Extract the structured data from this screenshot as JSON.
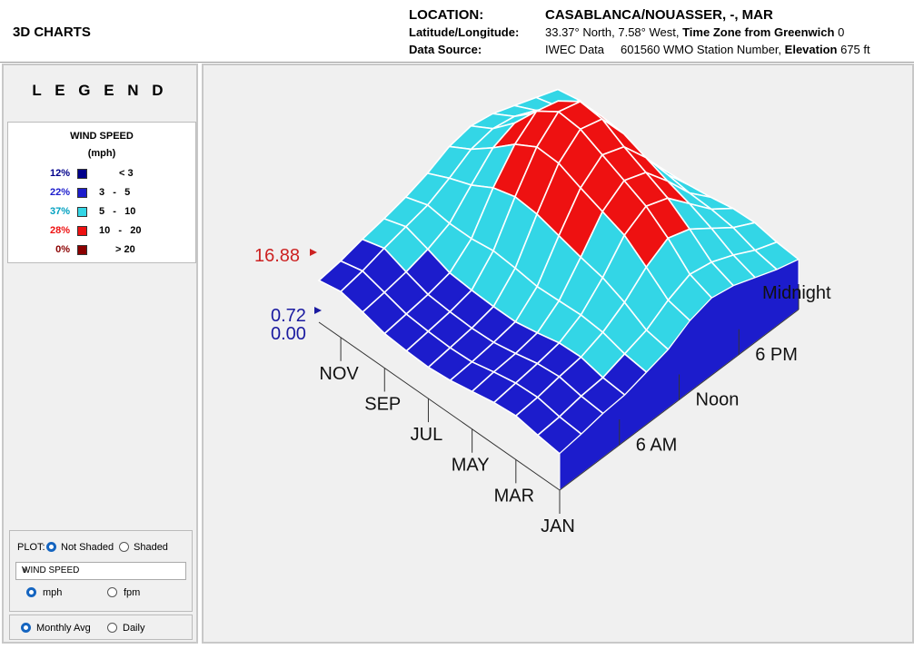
{
  "app_title": "3D CHARTS",
  "header": {
    "location_label": "LOCATION:",
    "location_value": "CASABLANCA/NOUASSER, -, MAR",
    "latlon_label": "Latitude/Longitude:",
    "latlon_value": "33.37° North, 7.58° West,",
    "tz_label": "Time Zone from Greenwich",
    "tz_value": "0",
    "source_label": "Data Source:",
    "source_value": "IWEC Data",
    "station_value": "601560 WMO Station Number,",
    "elevation_label": "Elevation",
    "elevation_value": "675 ft"
  },
  "legend": {
    "title": "L E G E N D",
    "variable": "WIND SPEED",
    "unit": "(mph)",
    "rows": [
      {
        "pct": "12%",
        "range": "< 3",
        "color": "#00008b"
      },
      {
        "pct": "22%",
        "range": "3   -   5",
        "color": "#1c1ccc"
      },
      {
        "pct": "37%",
        "range": "5   -   10",
        "color": "#33d6e6"
      },
      {
        "pct": "28%",
        "range": "10   -   20",
        "color": "#ee1111"
      },
      {
        "pct": "0%",
        "range": "> 20",
        "color": "#8b0000"
      }
    ]
  },
  "controls": {
    "plot_label": "PLOT:",
    "not_shaded": "Not Shaded",
    "shaded": "Shaded",
    "variable_select": "WIND SPEED",
    "unit_mph": "mph",
    "unit_fpm": "fpm",
    "monthly_avg": "Monthly Avg",
    "daily": "Daily"
  },
  "chart_data": {
    "type": "surface3d",
    "z_max_label": "16.88",
    "z_min_labels": [
      "0.72",
      "0.00"
    ],
    "month_labels": [
      "JAN",
      "MAR",
      "MAY",
      "JUL",
      "SEP",
      "NOV"
    ],
    "hour_labels": [
      "6 AM",
      "Noon",
      "6 PM",
      "Midnight"
    ],
    "color_bins": [
      3,
      5,
      10,
      20
    ],
    "colors": [
      "#00008b",
      "#1c1ccc",
      "#33d6e6",
      "#ee1111",
      "#8b0000"
    ],
    "hour_sample": [
      0,
      2,
      4,
      6,
      8,
      10,
      12,
      14,
      16,
      18,
      20,
      22
    ],
    "rows": [
      {
        "month": "JAN",
        "values": [
          3.5,
          3.8,
          4.2,
          4.4,
          5.0,
          5.6,
          6.8,
          7.4,
          7.0,
          6.2,
          5.4,
          4.8
        ]
      },
      {
        "month": "FEB",
        "values": [
          3.8,
          4.0,
          4.4,
          4.6,
          5.3,
          6.0,
          7.3,
          8.2,
          7.8,
          6.9,
          5.8,
          5.0
        ]
      },
      {
        "month": "MAR",
        "values": [
          4.2,
          4.4,
          4.8,
          5.1,
          5.9,
          7.2,
          9.0,
          10.2,
          9.5,
          8.0,
          6.5,
          5.4
        ]
      },
      {
        "month": "APR",
        "values": [
          4.0,
          4.3,
          4.6,
          5.0,
          6.1,
          8.1,
          10.6,
          11.8,
          11.0,
          8.9,
          6.8,
          5.3
        ]
      },
      {
        "month": "MAY",
        "values": [
          3.6,
          3.9,
          4.1,
          4.5,
          6.0,
          8.6,
          11.4,
          12.8,
          12.0,
          9.6,
          6.9,
          4.9
        ]
      },
      {
        "month": "JUN",
        "values": [
          3.2,
          3.4,
          3.7,
          4.1,
          5.9,
          9.2,
          12.2,
          13.8,
          13.0,
          10.4,
          7.2,
          4.6
        ]
      },
      {
        "month": "JUL",
        "values": [
          3.0,
          3.3,
          3.6,
          4.1,
          6.2,
          9.8,
          13.1,
          14.8,
          14.2,
          11.2,
          7.3,
          4.4
        ]
      },
      {
        "month": "AUG",
        "values": [
          3.1,
          3.4,
          3.7,
          4.2,
          6.4,
          10.0,
          13.2,
          15.0,
          14.4,
          11.4,
          7.2,
          4.3
        ]
      },
      {
        "month": "SEP",
        "values": [
          3.3,
          3.6,
          3.9,
          4.4,
          6.1,
          9.4,
          12.0,
          13.6,
          13.0,
          10.3,
          6.9,
          4.6
        ]
      },
      {
        "month": "OCT",
        "values": [
          3.9,
          4.2,
          4.6,
          5.2,
          6.1,
          8.2,
          10.2,
          11.0,
          10.4,
          8.4,
          6.4,
          5.0
        ]
      },
      {
        "month": "NOV",
        "values": [
          4.4,
          4.8,
          5.4,
          5.9,
          6.4,
          7.4,
          8.6,
          9.0,
          8.6,
          7.6,
          6.4,
          5.4
        ]
      },
      {
        "month": "DEC",
        "values": [
          4.0,
          4.3,
          4.8,
          5.2,
          5.7,
          6.4,
          7.4,
          7.8,
          7.4,
          6.6,
          5.8,
          5.0
        ]
      }
    ]
  }
}
